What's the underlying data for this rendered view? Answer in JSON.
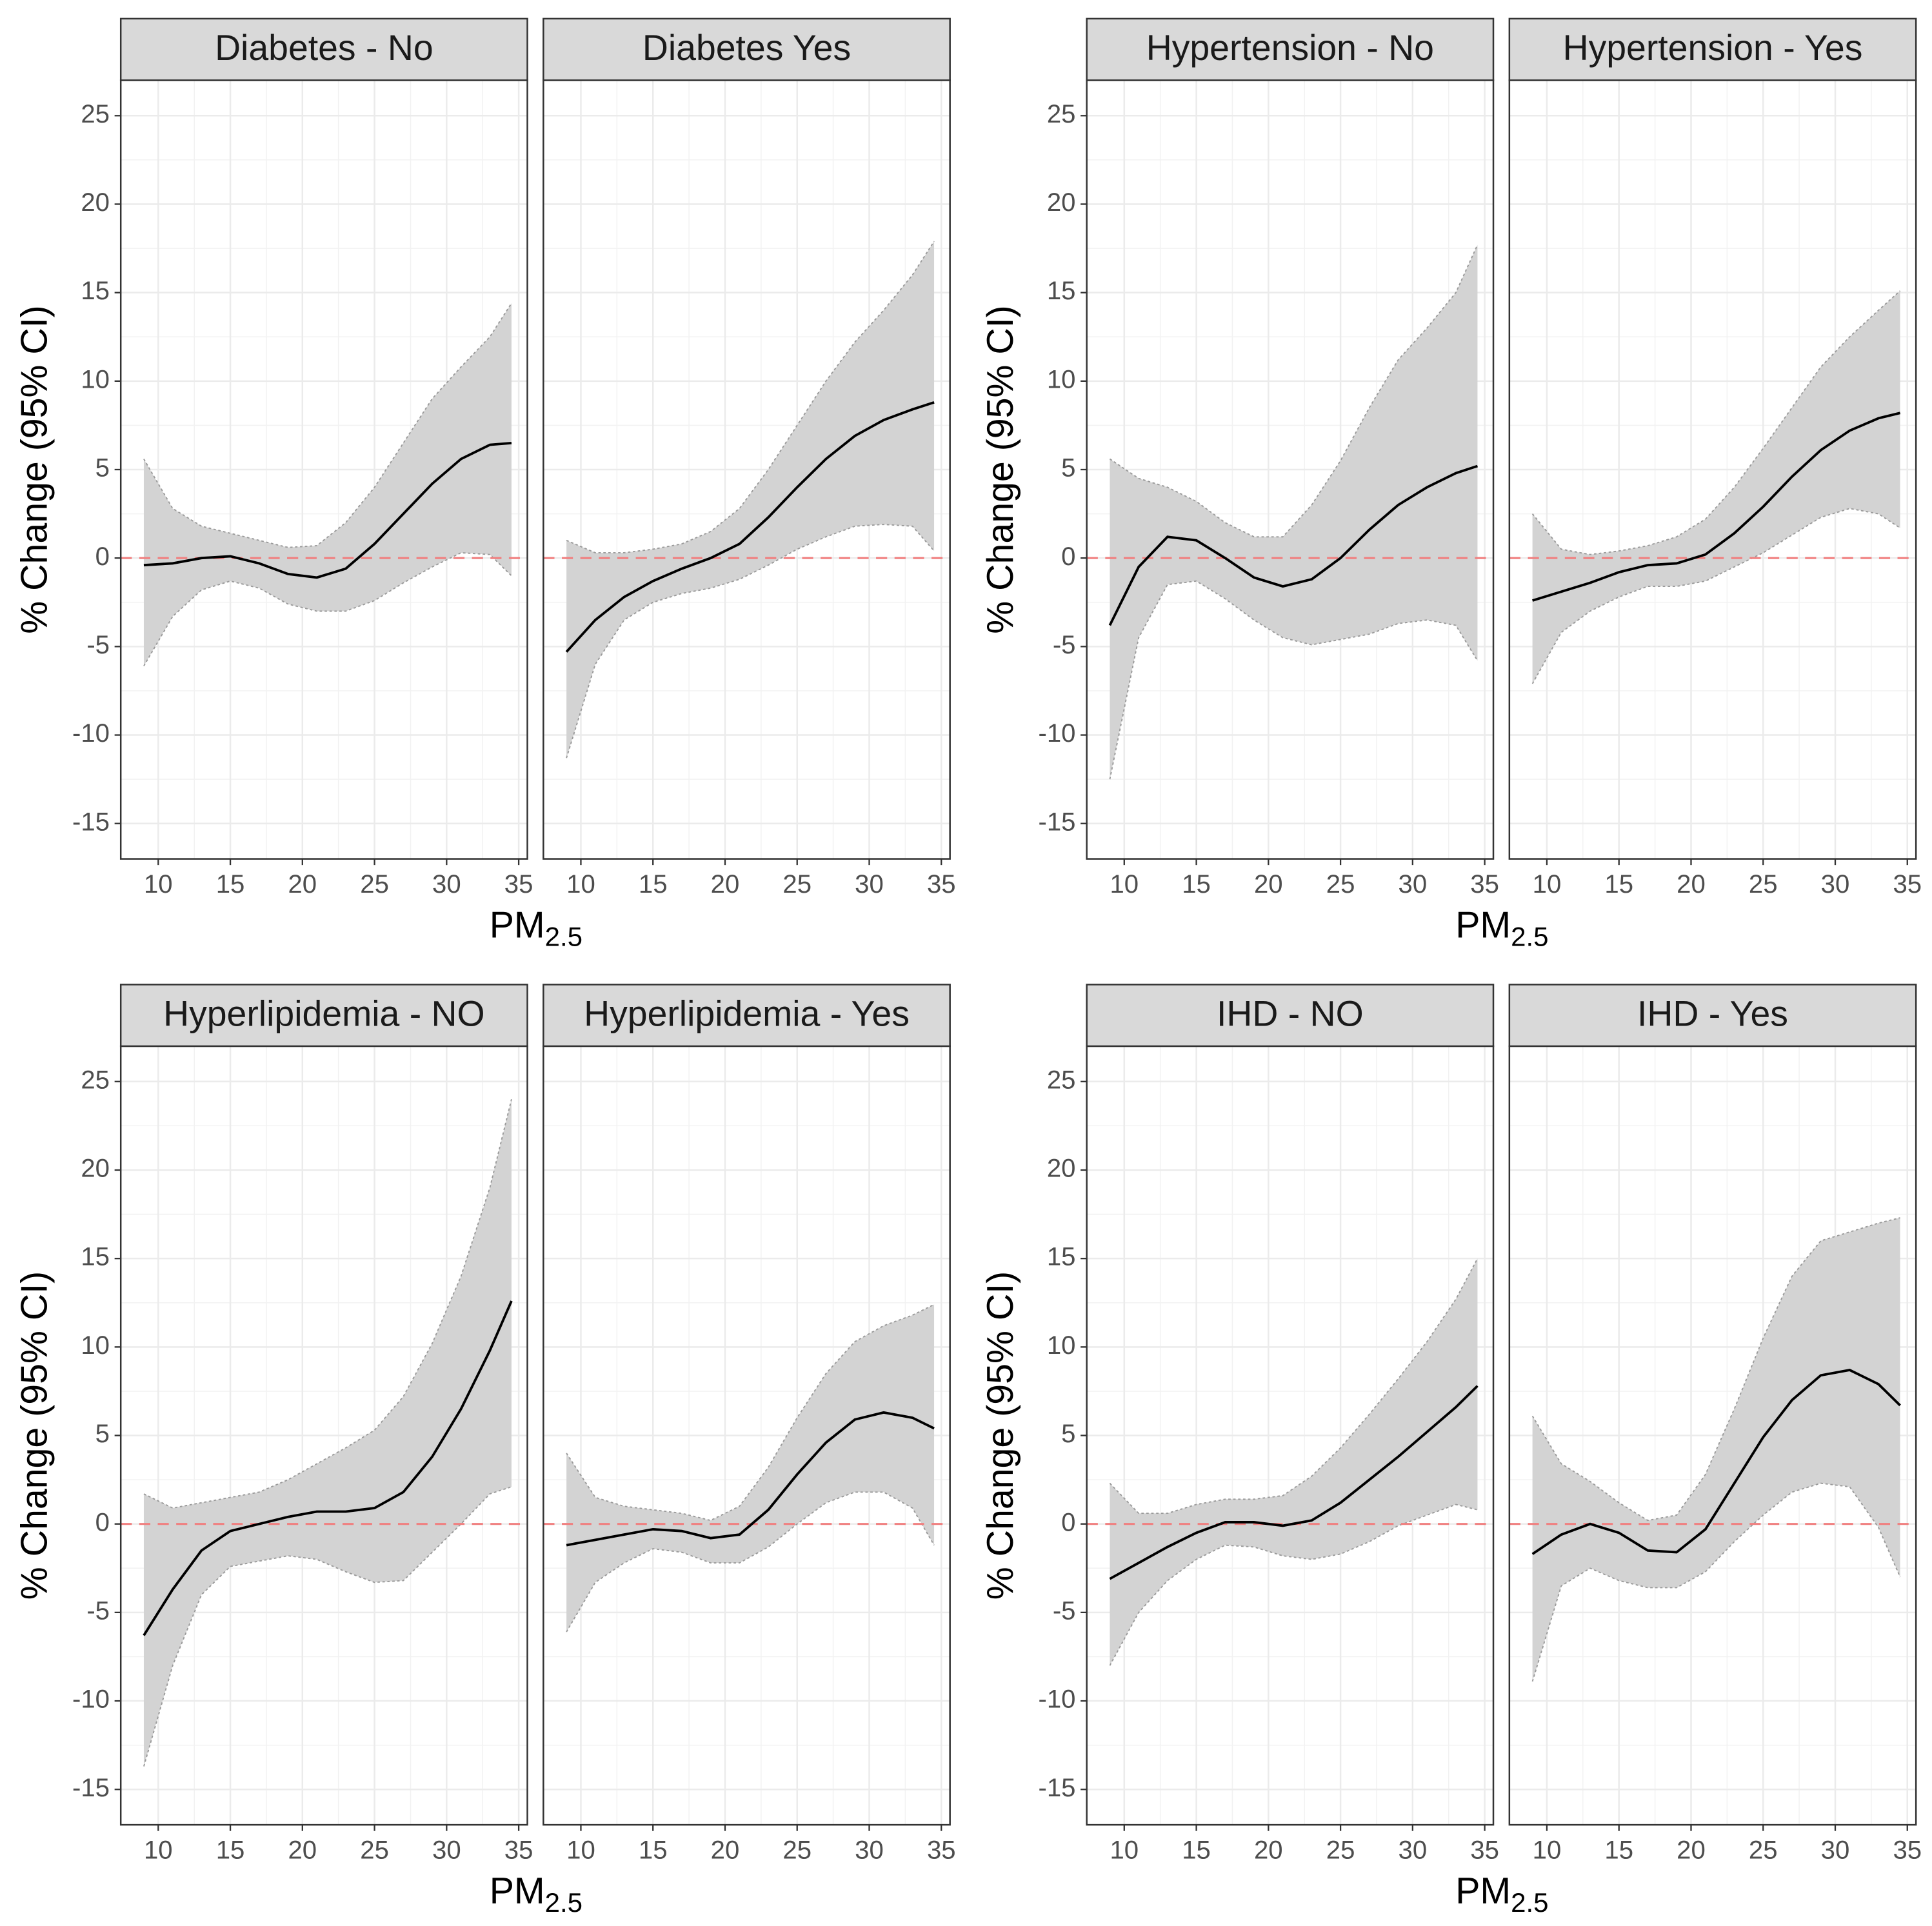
{
  "chart_data": [
    {
      "type": "line",
      "ylabel": "% Change (95% CI)",
      "xlabel": "PM",
      "xlabel_subscript": "2.5",
      "xlim": [
        7.4,
        35.6
      ],
      "xticks": [
        10,
        15,
        20,
        25,
        30,
        35
      ],
      "ylim": [
        -17,
        27
      ],
      "yticks": [
        -15,
        -10,
        -5,
        0,
        5,
        10,
        15,
        20,
        25
      ],
      "grid": true,
      "minor_grid": true,
      "reference_line": 0,
      "reference_color": "#f08080",
      "line_color": "#000000",
      "band_color": "#d3d3d3",
      "band_edge_color": "#9a9a9a",
      "x": [
        9,
        11,
        13,
        15,
        17,
        19,
        21,
        23,
        25,
        27,
        29,
        31,
        33,
        34.5
      ],
      "facets": [
        {
          "title": "Diabetes - No",
          "values": [
            -0.4,
            -0.3,
            0,
            0.1,
            -0.3,
            -0.9,
            -1.1,
            -0.6,
            0.8,
            2.5,
            4.2,
            5.6,
            6.4,
            6.5
          ],
          "upper": [
            5.6,
            2.8,
            1.8,
            1.4,
            1.0,
            0.6,
            0.7,
            2.0,
            4.0,
            6.5,
            9.0,
            10.8,
            12.5,
            14.4
          ],
          "lower": [
            -6.1,
            -3.3,
            -1.8,
            -1.3,
            -1.7,
            -2.6,
            -3.0,
            -3.0,
            -2.4,
            -1.4,
            -0.5,
            0.3,
            0.2,
            -1.0
          ]
        },
        {
          "title": "Diabetes Yes",
          "values": [
            -5.3,
            -3.5,
            -2.2,
            -1.3,
            -0.6,
            0,
            0.8,
            2.3,
            4.0,
            5.6,
            6.9,
            7.8,
            8.4,
            8.8
          ],
          "upper": [
            1.0,
            0.3,
            0.3,
            0.5,
            0.8,
            1.5,
            2.8,
            5.0,
            7.5,
            10.0,
            12.2,
            14.0,
            16.0,
            17.9
          ],
          "lower": [
            -11.3,
            -6.0,
            -3.5,
            -2.5,
            -2.0,
            -1.7,
            -1.2,
            -0.4,
            0.5,
            1.2,
            1.8,
            1.9,
            1.8,
            0.4
          ]
        }
      ]
    },
    {
      "type": "line",
      "ylabel": "% Change (95% CI)",
      "xlabel": "PM",
      "xlabel_subscript": "2.5",
      "xlim": [
        7.4,
        35.6
      ],
      "xticks": [
        10,
        15,
        20,
        25,
        30,
        35
      ],
      "ylim": [
        -17,
        27
      ],
      "yticks": [
        -15,
        -10,
        -5,
        0,
        5,
        10,
        15,
        20,
        25
      ],
      "grid": true,
      "minor_grid": true,
      "reference_line": 0,
      "reference_color": "#f08080",
      "line_color": "#000000",
      "band_color": "#d3d3d3",
      "band_edge_color": "#9a9a9a",
      "x": [
        9,
        11,
        13,
        15,
        17,
        19,
        21,
        23,
        25,
        27,
        29,
        31,
        33,
        34.5
      ],
      "facets": [
        {
          "title": "Hypertension - No",
          "values": [
            -3.8,
            -0.5,
            1.2,
            1.0,
            0,
            -1.1,
            -1.6,
            -1.2,
            0,
            1.6,
            3.0,
            4.0,
            4.8,
            5.2
          ],
          "upper": [
            5.6,
            4.5,
            4.0,
            3.2,
            2.0,
            1.2,
            1.2,
            3.0,
            5.5,
            8.5,
            11.2,
            13.0,
            15.0,
            17.7
          ],
          "lower": [
            -12.5,
            -4.5,
            -1.5,
            -1.3,
            -2.3,
            -3.5,
            -4.5,
            -4.9,
            -4.6,
            -4.3,
            -3.7,
            -3.5,
            -3.8,
            -5.8
          ]
        },
        {
          "title": "Hypertension - Yes",
          "values": [
            -2.4,
            -1.9,
            -1.4,
            -0.8,
            -0.4,
            -0.3,
            0.2,
            1.4,
            2.9,
            4.6,
            6.1,
            7.2,
            7.9,
            8.2
          ],
          "upper": [
            2.5,
            0.5,
            0.2,
            0.4,
            0.7,
            1.2,
            2.2,
            4.0,
            6.2,
            8.5,
            10.8,
            12.5,
            14.0,
            15.1
          ],
          "lower": [
            -7.1,
            -4.2,
            -3.0,
            -2.2,
            -1.6,
            -1.6,
            -1.3,
            -0.5,
            0.3,
            1.3,
            2.3,
            2.8,
            2.5,
            1.7
          ]
        }
      ]
    },
    {
      "type": "line",
      "ylabel": "% Change (95% CI)",
      "xlabel": "PM",
      "xlabel_subscript": "2.5",
      "xlim": [
        7.4,
        35.6
      ],
      "xticks": [
        10,
        15,
        20,
        25,
        30,
        35
      ],
      "ylim": [
        -17,
        27
      ],
      "yticks": [
        -15,
        -10,
        -5,
        0,
        5,
        10,
        15,
        20,
        25
      ],
      "grid": true,
      "minor_grid": true,
      "reference_line": 0,
      "reference_color": "#f08080",
      "line_color": "#000000",
      "band_color": "#d3d3d3",
      "band_edge_color": "#9a9a9a",
      "x": [
        9,
        11,
        13,
        15,
        17,
        19,
        21,
        23,
        25,
        27,
        29,
        31,
        33,
        34.5
      ],
      "facets": [
        {
          "title": "Hyperlipidemia - NO",
          "values": [
            -6.3,
            -3.7,
            -1.5,
            -0.4,
            0,
            0.4,
            0.7,
            0.7,
            0.9,
            1.8,
            3.8,
            6.5,
            9.8,
            12.6
          ],
          "upper": [
            1.7,
            0.9,
            1.2,
            1.5,
            1.8,
            2.5,
            3.4,
            4.3,
            5.3,
            7.2,
            10.2,
            14.0,
            19.0,
            24.0
          ],
          "lower": [
            -13.7,
            -8.0,
            -4.0,
            -2.4,
            -2.1,
            -1.8,
            -2.0,
            -2.7,
            -3.3,
            -3.2,
            -1.6,
            0.0,
            1.7,
            2.1
          ]
        },
        {
          "title": "Hyperlipidemia - Yes",
          "values": [
            -1.2,
            -0.9,
            -0.6,
            -0.3,
            -0.4,
            -0.8,
            -0.6,
            0.8,
            2.8,
            4.6,
            5.9,
            6.3,
            6.0,
            5.4
          ],
          "upper": [
            4.0,
            1.5,
            1.0,
            0.8,
            0.6,
            0.2,
            1.0,
            3.2,
            6.0,
            8.5,
            10.3,
            11.2,
            11.8,
            12.4
          ],
          "lower": [
            -6.1,
            -3.3,
            -2.2,
            -1.4,
            -1.6,
            -2.2,
            -2.2,
            -1.3,
            0,
            1.2,
            1.8,
            1.8,
            0.9,
            -1.2
          ]
        }
      ]
    },
    {
      "type": "line",
      "ylabel": "% Change (95% CI)",
      "xlabel": "PM",
      "xlabel_subscript": "2.5",
      "xlim": [
        7.4,
        35.6
      ],
      "xticks": [
        10,
        15,
        20,
        25,
        30,
        35
      ],
      "ylim": [
        -17,
        27
      ],
      "yticks": [
        -15,
        -10,
        -5,
        0,
        5,
        10,
        15,
        20,
        25
      ],
      "grid": true,
      "minor_grid": true,
      "reference_line": 0,
      "reference_color": "#f08080",
      "line_color": "#000000",
      "band_color": "#d3d3d3",
      "band_edge_color": "#9a9a9a",
      "x": [
        9,
        11,
        13,
        15,
        17,
        19,
        21,
        23,
        25,
        27,
        29,
        31,
        33,
        34.5
      ],
      "facets": [
        {
          "title": "IHD - NO",
          "values": [
            -3.1,
            -2.2,
            -1.3,
            -0.5,
            0.1,
            0.1,
            -0.1,
            0.2,
            1.2,
            2.5,
            3.8,
            5.2,
            6.6,
            7.8
          ],
          "upper": [
            2.3,
            0.6,
            0.6,
            1.1,
            1.4,
            1.4,
            1.6,
            2.7,
            4.3,
            6.2,
            8.2,
            10.3,
            12.7,
            15.0
          ],
          "lower": [
            -8.0,
            -5.0,
            -3.2,
            -2.0,
            -1.2,
            -1.3,
            -1.8,
            -2.0,
            -1.7,
            -1.0,
            -0.1,
            0.5,
            1.1,
            0.8
          ]
        },
        {
          "title": "IHD - Yes",
          "values": [
            -1.7,
            -0.6,
            0,
            -0.5,
            -1.5,
            -1.6,
            -0.3,
            2.3,
            4.9,
            7.0,
            8.4,
            8.7,
            7.9,
            6.7
          ],
          "upper": [
            6.1,
            3.4,
            2.4,
            1.2,
            0.2,
            0.5,
            2.8,
            6.5,
            10.5,
            14.0,
            16.0,
            16.5,
            17.0,
            17.3
          ],
          "lower": [
            -8.9,
            -3.5,
            -2.5,
            -3.2,
            -3.6,
            -3.6,
            -2.7,
            -1.0,
            0.5,
            1.8,
            2.3,
            2.1,
            -0.2,
            -3.0
          ]
        }
      ]
    }
  ]
}
